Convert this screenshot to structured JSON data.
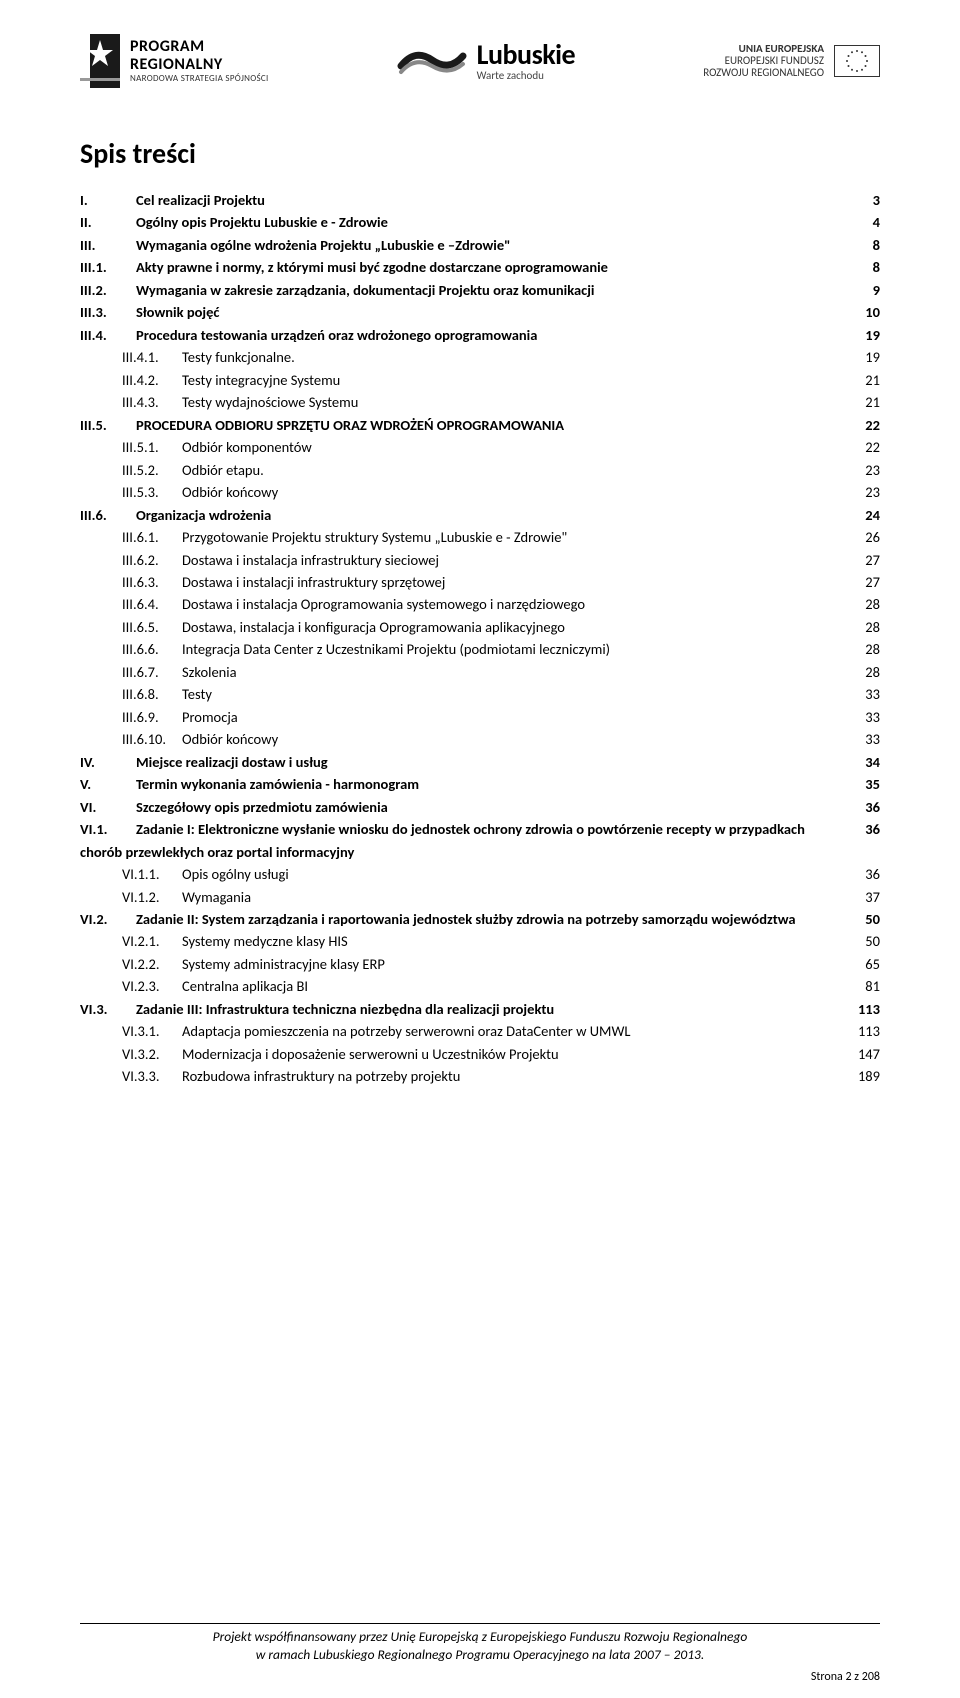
{
  "header": {
    "logo_left": {
      "line1": "PROGRAM",
      "line2": "REGIONALNY",
      "sub": "NARODOWA STRATEGIA SPÓJNOŚCI"
    },
    "logo_mid": {
      "title": "Lubuskie",
      "sub": "Warte zachodu"
    },
    "logo_right": {
      "line1": "UNIA EUROPEJSKA",
      "line2": "EUROPEJSKI FUNDUSZ",
      "line3": "ROZWOJU REGIONALNEGO"
    }
  },
  "title": "Spis treści",
  "toc": [
    {
      "num": "I.",
      "text": "Cel realizacji Projektu",
      "page": "3",
      "indent": 0,
      "bold": true
    },
    {
      "num": "II.",
      "text": "Ogólny opis Projektu Lubuskie e - Zdrowie",
      "page": "4",
      "indent": 0,
      "bold": true
    },
    {
      "num": "III.",
      "text": "Wymagania ogólne wdrożenia Projektu „Lubuskie e –Zdrowie\"",
      "page": "8",
      "indent": 0,
      "bold": true
    },
    {
      "num": "III.1.",
      "text": "Akty prawne i normy, z którymi musi być zgodne dostarczane oprogramowanie",
      "page": "8",
      "indent": 1,
      "bold": true
    },
    {
      "num": "III.2.",
      "text": "Wymagania w zakresie zarządzania, dokumentacji Projektu oraz komunikacji",
      "page": "9",
      "indent": 1,
      "bold": true
    },
    {
      "num": "III.3.",
      "text": "Słownik pojęć",
      "page": "10",
      "indent": 1,
      "bold": true
    },
    {
      "num": "III.4.",
      "text": "Procedura testowania urządzeń oraz wdrożonego oprogramowania",
      "page": "19",
      "indent": 1,
      "bold": true
    },
    {
      "num": "III.4.1.",
      "text": "Testy funkcjonalne.",
      "page": "19",
      "indent": 2,
      "bold": false
    },
    {
      "num": "III.4.2.",
      "text": "Testy integracyjne Systemu",
      "page": "21",
      "indent": 2,
      "bold": false
    },
    {
      "num": "III.4.3.",
      "text": "Testy wydajnościowe Systemu",
      "page": "21",
      "indent": 2,
      "bold": false
    },
    {
      "num": "III.5.",
      "text": "PROCEDURA ODBIORU SPRZĘTU ORAZ WDROŻEŃ OPROGRAMOWANIA",
      "page": "22",
      "indent": 1,
      "bold": true
    },
    {
      "num": "III.5.1.",
      "text": "Odbiór komponentów",
      "page": "22",
      "indent": 2,
      "bold": false
    },
    {
      "num": "III.5.2.",
      "text": "Odbiór etapu.",
      "page": "23",
      "indent": 2,
      "bold": false
    },
    {
      "num": "III.5.3.",
      "text": "Odbiór końcowy",
      "page": "23",
      "indent": 2,
      "bold": false
    },
    {
      "num": "III.6.",
      "text": "Organizacja wdrożenia",
      "page": "24",
      "indent": 1,
      "bold": true
    },
    {
      "num": "III.6.1.",
      "text": "Przygotowanie Projektu struktury Systemu „Lubuskie e - Zdrowie\"",
      "page": "26",
      "indent": 2,
      "bold": false
    },
    {
      "num": "III.6.2.",
      "text": "Dostawa i instalacja infrastruktury sieciowej",
      "page": "27",
      "indent": 2,
      "bold": false
    },
    {
      "num": "III.6.3.",
      "text": "Dostawa i instalacji infrastruktury sprzętowej",
      "page": "27",
      "indent": 2,
      "bold": false
    },
    {
      "num": "III.6.4.",
      "text": "Dostawa i instalacja Oprogramowania systemowego i narzędziowego",
      "page": "28",
      "indent": 2,
      "bold": false
    },
    {
      "num": "III.6.5.",
      "text": "Dostawa,  instalacja i konfiguracja Oprogramowania aplikacyjnego",
      "page": "28",
      "indent": 2,
      "bold": false
    },
    {
      "num": "III.6.6.",
      "text": "Integracja Data Center z Uczestnikami Projektu (podmiotami leczniczymi)",
      "page": "28",
      "indent": 2,
      "bold": false
    },
    {
      "num": "III.6.7.",
      "text": "Szkolenia",
      "page": "28",
      "indent": 2,
      "bold": false
    },
    {
      "num": "III.6.8.",
      "text": "Testy",
      "page": "33",
      "indent": 2,
      "bold": false
    },
    {
      "num": "III.6.9.",
      "text": "Promocja",
      "page": "33",
      "indent": 2,
      "bold": false
    },
    {
      "num": "III.6.10.",
      "text": "Odbiór końcowy",
      "page": "33",
      "indent": 2,
      "bold": false
    },
    {
      "num": "IV.",
      "text": "Miejsce realizacji dostaw i usług",
      "page": "34",
      "indent": 0,
      "bold": true
    },
    {
      "num": "V.",
      "text": "Termin wykonania zamówienia - harmonogram",
      "page": "35",
      "indent": 0,
      "bold": true
    },
    {
      "num": "VI.",
      "text": "Szczegółowy opis przedmiotu zamówienia",
      "page": "36",
      "indent": 0,
      "bold": true
    },
    {
      "num": "VI.1.",
      "text": "Zadanie I: Elektroniczne wysłanie wniosku do jednostek ochrony zdrowia o powtórzenie recepty w przypadkach chorób przewlekłych oraz portal informacyjny",
      "page": "36",
      "indent": 1,
      "bold": true
    },
    {
      "num": "VI.1.1.",
      "text": "Opis ogólny usługi",
      "page": "36",
      "indent": 2,
      "bold": false
    },
    {
      "num": "VI.1.2.",
      "text": "Wymagania",
      "page": "37",
      "indent": 2,
      "bold": false
    },
    {
      "num": "VI.2.",
      "text": "Zadanie II: System zarządzania i raportowania jednostek służby zdrowia na potrzeby samorządu województwa",
      "page": "50",
      "indent": 1,
      "bold": true
    },
    {
      "num": "VI.2.1.",
      "text": "Systemy medyczne klasy HIS",
      "page": "50",
      "indent": 2,
      "bold": false
    },
    {
      "num": "VI.2.2.",
      "text": "Systemy administracyjne klasy ERP",
      "page": "65",
      "indent": 2,
      "bold": false
    },
    {
      "num": "VI.2.3.",
      "text": "Centralna aplikacja BI",
      "page": "81",
      "indent": 2,
      "bold": false
    },
    {
      "num": "VI.3.",
      "text": "Zadanie III: Infrastruktura techniczna niezbędna dla realizacji projektu",
      "page": "113",
      "indent": 1,
      "bold": true
    },
    {
      "num": "VI.3.1.",
      "text": "Adaptacja pomieszczenia na potrzeby serwerowni oraz DataCenter w UMWL",
      "page": "113",
      "indent": 2,
      "bold": false
    },
    {
      "num": "VI.3.2.",
      "text": "Modernizacja i doposażenie serwerowni u Uczestników Projektu",
      "page": "147",
      "indent": 2,
      "bold": false
    },
    {
      "num": "VI.3.3.",
      "text": "Rozbudowa infrastruktury na potrzeby projektu",
      "page": "189",
      "indent": 2,
      "bold": false
    }
  ],
  "footer": {
    "line1": "Projekt współfinansowany przez Unię Europejską z Europejskiego Funduszu Rozwoju Regionalnego",
    "line2": "w ramach Lubuskiego Regionalnego Programu Operacyjnego na lata 2007 – 2013."
  },
  "page_indicator": "Strona 2 z 208"
}
